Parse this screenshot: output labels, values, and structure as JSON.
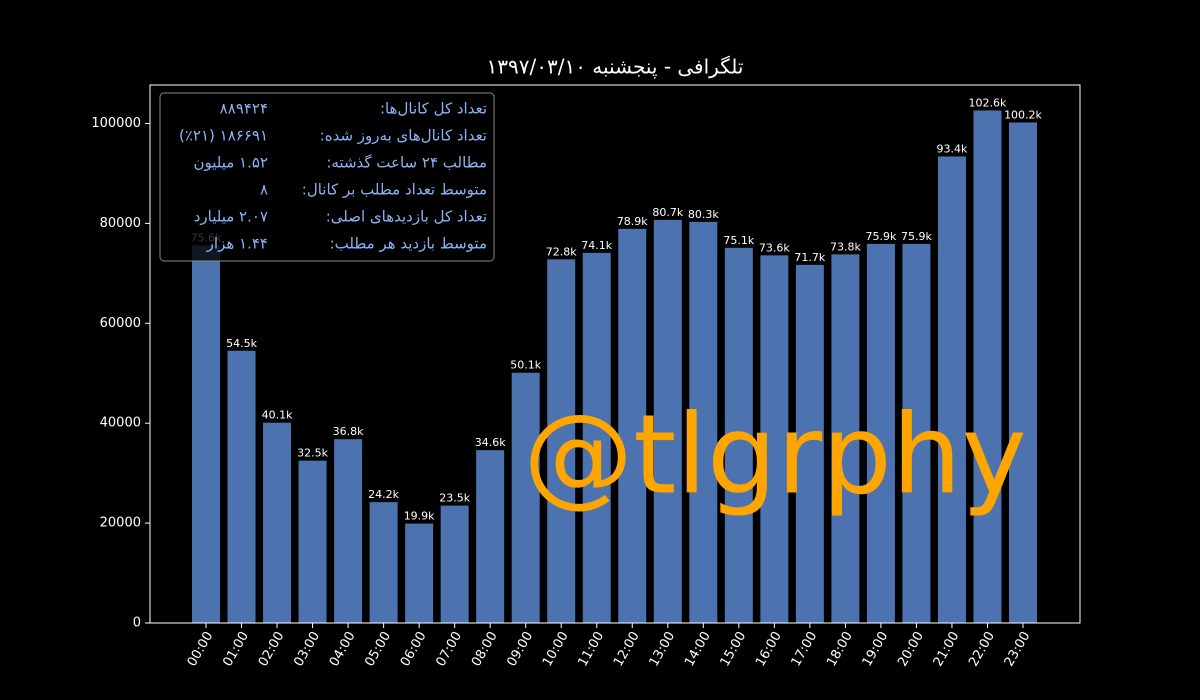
{
  "chart_data": {
    "type": "bar",
    "title": "تلگرافی - پنجشنبه ۱۳۹۷/۰۳/۱۰",
    "categories": [
      "00:00",
      "01:00",
      "02:00",
      "03:00",
      "04:00",
      "05:00",
      "06:00",
      "07:00",
      "08:00",
      "09:00",
      "10:00",
      "11:00",
      "12:00",
      "13:00",
      "14:00",
      "15:00",
      "16:00",
      "17:00",
      "18:00",
      "19:00",
      "20:00",
      "21:00",
      "22:00",
      "23:00"
    ],
    "values": [
      75600,
      54500,
      40100,
      32500,
      36800,
      24200,
      19900,
      23500,
      34600,
      50100,
      72800,
      74100,
      78900,
      80700,
      80300,
      75100,
      73600,
      71700,
      73800,
      75900,
      75900,
      93400,
      102600,
      100200
    ],
    "value_labels": [
      "75.6k",
      "54.5k",
      "40.1k",
      "32.5k",
      "36.8k",
      "24.2k",
      "19.9k",
      "23.5k",
      "34.6k",
      "50.1k",
      "72.8k",
      "74.1k",
      "78.9k",
      "80.7k",
      "80.3k",
      "75.1k",
      "73.6k",
      "71.7k",
      "73.8k",
      "75.9k",
      "75.9k",
      "93.4k",
      "102.6k",
      "100.2k"
    ],
    "color": "#4c72b0",
    "ylim": [
      0,
      107700
    ],
    "yticks": [
      0,
      20000,
      40000,
      60000,
      80000,
      100000
    ],
    "watermark": "@tlgrphy",
    "info": [
      {
        "label": "تعداد کل کانال‌ها:",
        "value": "۸۸۹۴۲۴"
      },
      {
        "label": "تعداد کانال‌های به‌روز شده:",
        "value": "۱۸۶۶۹۱ (٪۲۱)"
      },
      {
        "label": "مطالب ۲۴ ساعت گذشته:",
        "value": "۱.۵۲ میلیون"
      },
      {
        "label": "متوسط تعداد مطلب بر کانال:",
        "value": "۸"
      },
      {
        "label": "تعداد کل بازدیدهای اصلی:",
        "value": "۲.۰۷ میلیارد"
      },
      {
        "label": "متوسط بازدید هر مطلب:",
        "value": "۱.۴۴ هزار"
      }
    ]
  }
}
